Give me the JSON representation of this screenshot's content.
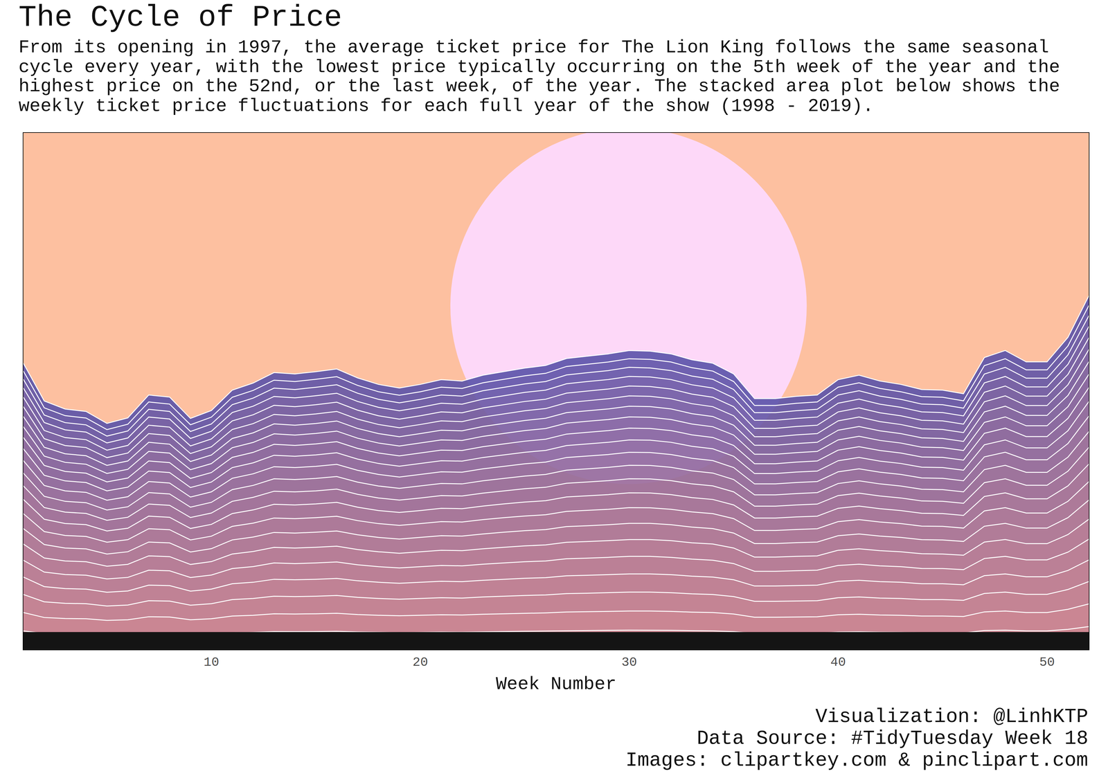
{
  "chart_data": {
    "type": "area",
    "title": "The Cycle of Price",
    "subtitle": [
      "From its opening in 1997, the average ticket price for The Lion King follows the same seasonal",
      "cycle every year, with the lowest price typically occurring on the 5th week of the year and the",
      "highest price on the 52nd, or the last week, of the year. The stacked area plot below shows the",
      "weekly ticket price fluctuations for each full year of the show (1998 - 2019)."
    ],
    "x_label": "Week Number",
    "annotations": [
      "Visualization: @LinhKTP",
      "Data Source: #TidyTuesday Week 18",
      "Images: clipartkey.com & pinclipart.com"
    ],
    "x": [
      1,
      2,
      3,
      4,
      5,
      6,
      7,
      8,
      9,
      10,
      11,
      12,
      13,
      14,
      15,
      16,
      17,
      18,
      19,
      20,
      21,
      22,
      23,
      24,
      25,
      26,
      27,
      28,
      29,
      30,
      31,
      32,
      33,
      34,
      35,
      36,
      37,
      38,
      39,
      40,
      41,
      42,
      43,
      44,
      45,
      46,
      47,
      48,
      49,
      50,
      51,
      52
    ],
    "xlim": [
      1,
      52
    ],
    "xticks": [
      10,
      20,
      30,
      40,
      50
    ],
    "ylim": [
      0,
      4150
    ],
    "stacked": true,
    "grid": false,
    "tick_labels": "x",
    "series": [
      {
        "color": "#c98290",
        "values": [
          150,
          130,
          126,
          125,
          118,
          121,
          133,
          132,
          121,
          125,
          136,
          139,
          145,
          144,
          145,
          147,
          142,
          139,
          137,
          139,
          141,
          140,
          143,
          145,
          147,
          149,
          152,
          153,
          155,
          156,
          156,
          155,
          152,
          150,
          144,
          131,
          131,
          132,
          133,
          141,
          143,
          140,
          139,
          136,
          136,
          134,
          153,
          156,
          150,
          150,
          163,
          185
        ]
      },
      {
        "color": "#c48091",
        "values": [
          148,
          128,
          124,
          123,
          117,
          119,
          131,
          130,
          119,
          123,
          134,
          137,
          143,
          142,
          143,
          145,
          140,
          137,
          135,
          137,
          139,
          138,
          141,
          143,
          145,
          146,
          150,
          151,
          152,
          154,
          154,
          152,
          149,
          148,
          142,
          129,
          129,
          130,
          131,
          139,
          141,
          138,
          137,
          134,
          134,
          132,
          150,
          154,
          148,
          148,
          161,
          182
        ]
      },
      {
        "color": "#be7d92",
        "values": [
          145,
          126,
          122,
          121,
          115,
          118,
          129,
          128,
          117,
          121,
          132,
          135,
          141,
          140,
          141,
          143,
          138,
          135,
          133,
          135,
          137,
          136,
          139,
          141,
          143,
          144,
          148,
          149,
          150,
          152,
          152,
          150,
          147,
          145,
          140,
          128,
          128,
          129,
          129,
          137,
          139,
          136,
          135,
          132,
          132,
          130,
          148,
          152,
          146,
          146,
          159,
          180
        ]
      },
      {
        "color": "#b97b93",
        "values": [
          140,
          122,
          118,
          117,
          111,
          113,
          125,
          124,
          113,
          117,
          127,
          130,
          136,
          135,
          136,
          137,
          133,
          130,
          128,
          130,
          132,
          132,
          134,
          136,
          138,
          139,
          143,
          144,
          145,
          146,
          146,
          145,
          142,
          140,
          135,
          123,
          123,
          124,
          125,
          132,
          134,
          132,
          130,
          127,
          127,
          125,
          143,
          146,
          141,
          141,
          153,
          173
        ]
      },
      {
        "color": "#b47995",
        "values": [
          135,
          117,
          113,
          112,
          107,
          109,
          120,
          119,
          109,
          113,
          122,
          126,
          131,
          130,
          131,
          132,
          128,
          125,
          123,
          125,
          127,
          127,
          129,
          131,
          133,
          134,
          137,
          138,
          139,
          141,
          141,
          139,
          137,
          135,
          130,
          118,
          118,
          119,
          120,
          127,
          129,
          127,
          125,
          123,
          122,
          121,
          138,
          141,
          136,
          136,
          147,
          167
        ]
      },
      {
        "color": "#af7796",
        "values": [
          130,
          113,
          109,
          108,
          102,
          105,
          115,
          114,
          105,
          108,
          117,
          121,
          125,
          125,
          126,
          127,
          123,
          120,
          118,
          120,
          122,
          122,
          124,
          126,
          127,
          129,
          132,
          133,
          134,
          135,
          135,
          134,
          131,
          130,
          125,
          114,
          114,
          115,
          115,
          122,
          124,
          122,
          120,
          118,
          117,
          116,
          132,
          135,
          130,
          130,
          141,
          160
        ]
      },
      {
        "color": "#a97497",
        "values": [
          124,
          108,
          104,
          103,
          98,
          101,
          111,
          110,
          100,
          104,
          113,
          116,
          120,
          120,
          121,
          122,
          118,
          115,
          114,
          115,
          117,
          117,
          119,
          121,
          122,
          123,
          126,
          127,
          128,
          130,
          130,
          128,
          126,
          124,
          120,
          109,
          109,
          110,
          111,
          117,
          119,
          117,
          115,
          113,
          113,
          111,
          127,
          130,
          125,
          125,
          136,
          154
        ]
      },
      {
        "color": "#a47298",
        "values": [
          120,
          104,
          101,
          100,
          95,
          97,
          107,
          106,
          97,
          100,
          109,
          112,
          116,
          116,
          117,
          118,
          114,
          111,
          110,
          111,
          113,
          113,
          115,
          117,
          118,
          119,
          122,
          123,
          124,
          126,
          125,
          124,
          122,
          120,
          116,
          105,
          105,
          106,
          107,
          113,
          115,
          113,
          111,
          109,
          109,
          107,
          123,
          126,
          121,
          121,
          131,
          148
        ]
      },
      {
        "color": "#9f7099",
        "values": [
          114,
          99,
          96,
          95,
          90,
          92,
          101,
          100,
          92,
          95,
          103,
          106,
          110,
          110,
          110,
          112,
          108,
          105,
          104,
          105,
          107,
          107,
          109,
          110,
          112,
          113,
          116,
          117,
          118,
          119,
          119,
          118,
          115,
          114,
          110,
          100,
          100,
          101,
          101,
          107,
          109,
          107,
          105,
          103,
          103,
          102,
          116,
          119,
          114,
          114,
          124,
          141
        ]
      },
      {
        "color": "#996d9a",
        "values": [
          109,
          94,
          91,
          90,
          86,
          88,
          97,
          96,
          88,
          91,
          98,
          101,
          105,
          105,
          105,
          106,
          103,
          101,
          99,
          101,
          102,
          102,
          104,
          105,
          107,
          108,
          110,
          111,
          112,
          113,
          113,
          112,
          110,
          109,
          105,
          95,
          95,
          96,
          97,
          102,
          104,
          102,
          101,
          99,
          98,
          97,
          111,
          113,
          109,
          109,
          118,
          134
        ]
      },
      {
        "color": "#946b9b",
        "values": [
          103,
          90,
          87,
          86,
          82,
          84,
          92,
          91,
          83,
          86,
          94,
          96,
          100,
          99,
          100,
          101,
          98,
          96,
          94,
          96,
          97,
          97,
          99,
          100,
          102,
          103,
          105,
          106,
          107,
          108,
          108,
          107,
          105,
          103,
          99,
          91,
          91,
          91,
          92,
          97,
          99,
          97,
          96,
          94,
          94,
          92,
          105,
          108,
          104,
          104,
          113,
          127
        ]
      },
      {
        "color": "#8f699d",
        "values": [
          100,
          87,
          84,
          83,
          79,
          81,
          89,
          88,
          81,
          84,
          91,
          93,
          97,
          96,
          97,
          98,
          95,
          93,
          91,
          93,
          94,
          94,
          96,
          97,
          98,
          99,
          102,
          103,
          103,
          105,
          104,
          103,
          101,
          100,
          96,
          88,
          88,
          89,
          89,
          94,
          96,
          94,
          93,
          91,
          91,
          89,
          102,
          105,
          101,
          101,
          109,
          124
        ]
      },
      {
        "color": "#8a679e",
        "values": [
          95,
          82,
          80,
          79,
          75,
          77,
          84,
          84,
          77,
          79,
          86,
          88,
          92,
          91,
          92,
          93,
          90,
          88,
          87,
          88,
          89,
          89,
          91,
          92,
          93,
          94,
          96,
          97,
          98,
          99,
          99,
          98,
          96,
          95,
          91,
          83,
          83,
          84,
          84,
          89,
          91,
          89,
          88,
          86,
          86,
          85,
          97,
          99,
          95,
          95,
          103,
          117
        ]
      },
      {
        "color": "#84649f",
        "values": [
          91,
          79,
          76,
          75,
          72,
          73,
          81,
          80,
          73,
          76,
          82,
          84,
          88,
          87,
          88,
          89,
          86,
          84,
          83,
          84,
          85,
          85,
          87,
          88,
          89,
          90,
          92,
          93,
          94,
          95,
          94,
          94,
          92,
          91,
          87,
          79,
          79,
          80,
          81,
          85,
          87,
          85,
          84,
          82,
          82,
          81,
          92,
          95,
          91,
          91,
          99,
          112
        ]
      },
      {
        "color": "#7f62a0",
        "values": [
          86,
          75,
          73,
          72,
          68,
          70,
          77,
          76,
          70,
          72,
          78,
          80,
          84,
          83,
          84,
          85,
          82,
          80,
          79,
          80,
          82,
          81,
          83,
          84,
          85,
          86,
          88,
          89,
          89,
          90,
          90,
          89,
          87,
          86,
          83,
          76,
          76,
          76,
          77,
          82,
          83,
          81,
          80,
          79,
          78,
          77,
          88,
          90,
          87,
          87,
          94,
          107
        ]
      },
      {
        "color": "#7a60a1",
        "values": [
          82,
          71,
          69,
          68,
          65,
          67,
          73,
          72,
          66,
          69,
          74,
          77,
          80,
          79,
          80,
          81,
          78,
          76,
          75,
          76,
          78,
          77,
          79,
          80,
          81,
          82,
          84,
          84,
          85,
          86,
          86,
          85,
          83,
          82,
          79,
          72,
          72,
          73,
          73,
          78,
          79,
          77,
          76,
          75,
          74,
          73,
          84,
          86,
          83,
          83,
          90,
          101
        ]
      },
      {
        "color": "#745da2",
        "values": [
          79,
          69,
          66,
          66,
          62,
          64,
          70,
          70,
          64,
          66,
          72,
          74,
          76,
          76,
          77,
          77,
          75,
          73,
          72,
          73,
          75,
          74,
          76,
          77,
          78,
          78,
          80,
          81,
          82,
          83,
          82,
          82,
          80,
          79,
          76,
          69,
          69,
          70,
          70,
          75,
          76,
          74,
          73,
          72,
          72,
          71,
          81,
          83,
          79,
          79,
          86,
          98
        ]
      },
      {
        "color": "#6f5ba3",
        "values": [
          76,
          66,
          64,
          63,
          60,
          61,
          67,
          67,
          61,
          63,
          69,
          71,
          73,
          73,
          74,
          74,
          72,
          70,
          69,
          70,
          72,
          71,
          73,
          74,
          75,
          75,
          77,
          78,
          78,
          79,
          79,
          78,
          77,
          76,
          73,
          67,
          67,
          67,
          67,
          72,
          73,
          71,
          70,
          69,
          69,
          68,
          77,
          79,
          76,
          76,
          83,
          94
        ]
      },
      {
        "color": "#6a59a5",
        "values": [
          74,
          64,
          62,
          61,
          58,
          60,
          66,
          65,
          60,
          62,
          67,
          69,
          71,
          71,
          72,
          72,
          70,
          68,
          67,
          68,
          70,
          69,
          71,
          72,
          73,
          73,
          75,
          76,
          76,
          77,
          77,
          76,
          75,
          74,
          71,
          65,
          65,
          65,
          66,
          70,
          71,
          69,
          68,
          67,
          67,
          66,
          75,
          77,
          74,
          74,
          81,
          91
        ]
      },
      {
        "color": "#6457a6",
        "values": [
          70,
          60,
          58,
          58,
          55,
          56,
          62,
          61,
          56,
          58,
          63,
          65,
          67,
          67,
          68,
          68,
          66,
          64,
          64,
          64,
          66,
          65,
          67,
          68,
          68,
          69,
          71,
          71,
          72,
          73,
          72,
          72,
          70,
          70,
          67,
          61,
          61,
          62,
          62,
          66,
          67,
          65,
          64,
          63,
          63,
          62,
          71,
          73,
          70,
          70,
          76,
          86
        ]
      },
      {
        "color": "#5f54a7",
        "values": [
          66,
          58,
          56,
          55,
          52,
          54,
          59,
          59,
          54,
          55,
          60,
          62,
          64,
          64,
          64,
          65,
          63,
          61,
          61,
          61,
          63,
          62,
          64,
          64,
          65,
          66,
          68,
          68,
          69,
          69,
          69,
          69,
          67,
          66,
          64,
          58,
          58,
          59,
          59,
          63,
          64,
          62,
          61,
          60,
          60,
          59,
          68,
          69,
          67,
          67,
          72,
          82
        ]
      },
      {
        "color": "#5a52a8",
        "values": [
          63,
          55,
          53,
          53,
          50,
          51,
          56,
          56,
          51,
          53,
          57,
          59,
          61,
          61,
          61,
          62,
          60,
          59,
          58,
          59,
          60,
          59,
          61,
          61,
          62,
          63,
          64,
          65,
          65,
          66,
          66,
          65,
          64,
          63,
          61,
          55,
          55,
          56,
          56,
          60,
          61,
          59,
          59,
          57,
          57,
          57,
          65,
          66,
          64,
          64,
          69,
          78
        ]
      }
    ]
  }
}
